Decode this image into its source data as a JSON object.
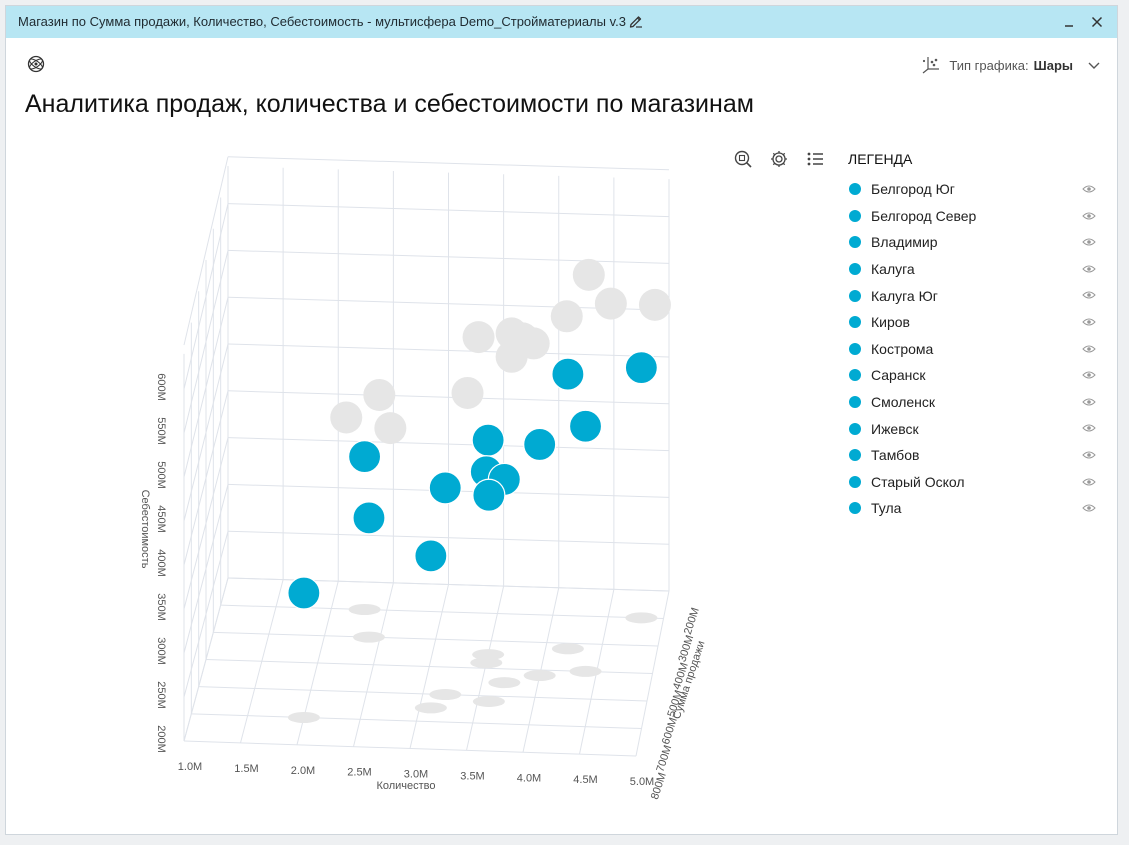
{
  "window": {
    "title": "Магазин по Сумма продажи, Количество, Себестоимость - мультисфера Demo_Стройматериалы v.3"
  },
  "chart_type_selector": {
    "label": "Тип графика:",
    "value": "Шары"
  },
  "page_title": "Аналитика продаж, количества и себестоимости по магазинам",
  "toolbar": {
    "icons": [
      "zoom-icon",
      "gear-icon",
      "legend-list-icon"
    ]
  },
  "legend": {
    "title": "ЛЕГЕНДА",
    "items": [
      {
        "label": "Белгород Юг"
      },
      {
        "label": "Белгород Север"
      },
      {
        "label": "Владимир"
      },
      {
        "label": "Калуга"
      },
      {
        "label": "Калуга Юг"
      },
      {
        "label": "Киров"
      },
      {
        "label": "Кострома"
      },
      {
        "label": "Саранск"
      },
      {
        "label": "Смоленск"
      },
      {
        "label": "Ижевск"
      },
      {
        "label": "Тамбов"
      },
      {
        "label": "Старый Оскол"
      },
      {
        "label": "Тула"
      }
    ]
  },
  "colors": {
    "series": "#00aad2",
    "shadow": "#e6e6e6",
    "titlebar": "#b7e6f3",
    "grid": "#dfe3ea"
  },
  "chart_data": {
    "type": "scatter",
    "subtype": "3d-bubble",
    "x_axis": {
      "label": "Количество",
      "range": [
        1000000,
        5000000
      ],
      "ticks": [
        "1.0M",
        "1.5M",
        "2.0M",
        "2.5M",
        "3.0M",
        "3.5M",
        "4.0M",
        "4.5M",
        "5.0M"
      ]
    },
    "y_axis": {
      "label": "Себестоимость",
      "range": [
        200000000,
        600000000
      ],
      "ticks": [
        "200M",
        "250M",
        "300M",
        "350M",
        "400M",
        "450M",
        "500M",
        "550M",
        "600M"
      ]
    },
    "z_axis": {
      "label": "Сумма продажи",
      "ticks": [
        "800M",
        "700M",
        "600M",
        "500M",
        "400M",
        "300M",
        "200M"
      ]
    },
    "legend_position": "right",
    "grid": true,
    "series": [
      {
        "name": "Белгород Юг",
        "x": 2.4,
        "y": 330,
        "z": 400
      },
      {
        "name": "Белгород Север",
        "x": 3.2,
        "y": 430,
        "z": 600
      },
      {
        "name": "Владимир",
        "x": 3.5,
        "y": 435,
        "z": 450
      },
      {
        "name": "Калуга",
        "x": 4.4,
        "y": 470,
        "z": 500
      },
      {
        "name": "Калуга Юг",
        "x": 2.0,
        "y": 340,
        "z": 700
      },
      {
        "name": "Киров",
        "x": 3.7,
        "y": 425,
        "z": 550
      },
      {
        "name": "Кострома",
        "x": 4.0,
        "y": 455,
        "z": 520
      },
      {
        "name": "Саранск",
        "x": 2.3,
        "y": 365,
        "z": 300
      },
      {
        "name": "Смоленск",
        "x": 4.8,
        "y": 470,
        "z": 300
      },
      {
        "name": "Ижевск",
        "x": 3.5,
        "y": 410,
        "z": 480
      },
      {
        "name": "Тамбов",
        "x": 4.2,
        "y": 500,
        "z": 420
      },
      {
        "name": "Старый Оскол",
        "x": 3.1,
        "y": 370,
        "z": 650
      },
      {
        "name": "Тула",
        "x": 3.6,
        "y": 430,
        "z": 620
      }
    ]
  }
}
